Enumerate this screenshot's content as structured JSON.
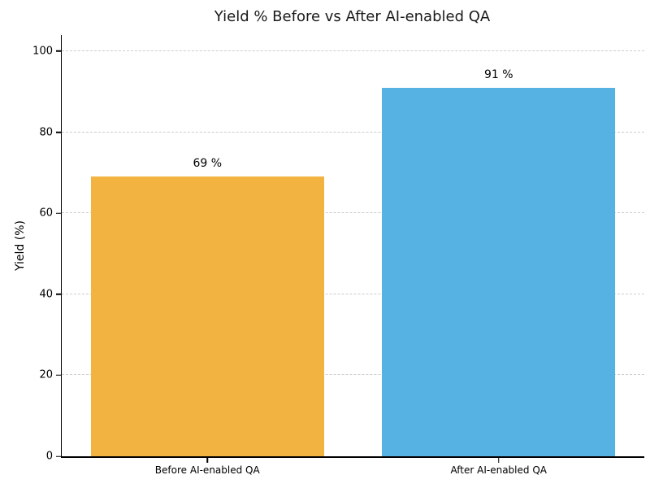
{
  "chart_data": {
    "type": "bar",
    "title": "Yield % Before vs After AI-enabled QA",
    "categories": [
      "Before AI-enabled QA",
      "After AI-enabled QA"
    ],
    "values": [
      69,
      91
    ],
    "bar_labels": [
      "69 %",
      "91 %"
    ],
    "bar_colors": [
      "#f2b340",
      "#55b2e2"
    ],
    "xlabel": "",
    "ylabel": "Yield (%)",
    "ylim": [
      0,
      104
    ],
    "yticks": [
      0,
      20,
      40,
      60,
      80,
      100
    ],
    "grid": "horizontal-dashed",
    "legend": "none",
    "bar_width_fraction": 0.8
  },
  "style": {
    "grid_color": "#cccccc",
    "spine_color": "#000000",
    "title_color": "#1a1a1a",
    "background": "#ffffff"
  }
}
